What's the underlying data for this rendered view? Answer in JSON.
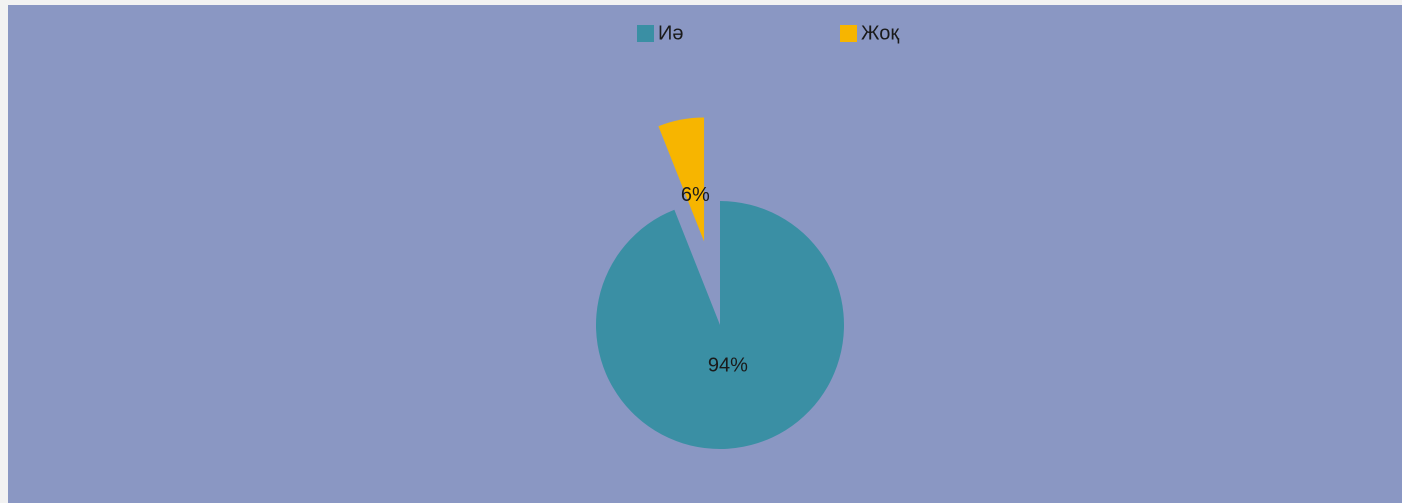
{
  "chart_data": {
    "type": "pie",
    "categories": [
      "Иә",
      "Жоқ"
    ],
    "values": [
      94,
      6
    ],
    "value_labels": [
      "94%",
      "6%"
    ],
    "colors": [
      "#3a8fa4",
      "#f7b500"
    ],
    "exploded": [
      false,
      true
    ],
    "legend": "top"
  }
}
